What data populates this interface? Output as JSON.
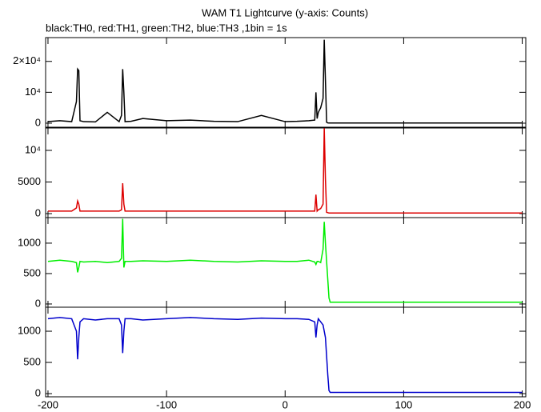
{
  "chart_data": [
    {
      "type": "line",
      "title": "WAM T1 Lightcurve (y-axis: Counts)",
      "subtitle": "black:TH0, red:TH1, green:TH2, blue:TH3 ,1bin = 1s",
      "x": [
        -200,
        -190,
        -180,
        -176,
        -175,
        -174,
        -173,
        -170,
        -160,
        -150,
        -140,
        -138,
        -137,
        -136,
        -135,
        -130,
        -120,
        -100,
        -80,
        -60,
        -40,
        -20,
        0,
        10,
        20,
        25,
        26,
        27,
        28,
        30,
        32,
        33,
        34,
        35,
        36,
        37,
        38,
        40,
        60,
        100,
        150,
        200
      ],
      "series": [
        {
          "color": "#000000",
          "values": [
            500,
            800,
            500,
            7000,
            17500,
            17000,
            800,
            500,
            400,
            3500,
            500,
            2500,
            17500,
            10000,
            500,
            600,
            1500,
            800,
            1000,
            600,
            500,
            2500,
            500,
            600,
            800,
            1000,
            10000,
            1500,
            3500,
            5000,
            8000,
            27000,
            14000,
            300,
            100,
            50,
            50,
            50,
            50,
            50,
            50,
            50
          ]
        }
      ],
      "xlim": [
        -202,
        203
      ],
      "xticks": [
        -200,
        -100,
        0,
        100,
        200
      ],
      "ylim": [
        -1300,
        27700
      ],
      "yticks": [
        0,
        {
          "value": 10000,
          "label": "10⁴"
        },
        {
          "value": 20000,
          "label": "2×10⁴"
        }
      ]
    },
    {
      "type": "line",
      "x": [
        -200,
        -190,
        -180,
        -176,
        -175,
        -174,
        -173,
        -170,
        -160,
        -150,
        -140,
        -138,
        -137,
        -136,
        -135,
        -130,
        -120,
        -100,
        -80,
        -60,
        -40,
        -20,
        0,
        10,
        20,
        25,
        26,
        27,
        28,
        30,
        32,
        33,
        34,
        35,
        36,
        37,
        38,
        40,
        60,
        100,
        150,
        200
      ],
      "series": [
        {
          "color": "#dd0000",
          "values": [
            400,
            400,
            400,
            900,
            2000,
            1500,
            400,
            400,
            400,
            400,
            400,
            600,
            4800,
            1500,
            400,
            400,
            400,
            400,
            400,
            400,
            400,
            400,
            400,
            400,
            400,
            400,
            3000,
            400,
            600,
            800,
            1500,
            13500,
            5500,
            200,
            150,
            100,
            100,
            100,
            100,
            100,
            100,
            100
          ]
        }
      ],
      "xlim": [
        -202,
        203
      ],
      "xticks": [
        -200,
        -100,
        0,
        100,
        200
      ],
      "ylim": [
        -630,
        13540
      ],
      "yticks": [
        0,
        5000,
        {
          "value": 10000,
          "label": "10⁴"
        }
      ]
    },
    {
      "type": "line",
      "x": [
        -200,
        -190,
        -180,
        -176,
        -175,
        -174,
        -173,
        -170,
        -160,
        -150,
        -140,
        -138,
        -137,
        -136,
        -135,
        -130,
        -120,
        -100,
        -80,
        -60,
        -40,
        -20,
        0,
        10,
        20,
        25,
        26,
        27,
        28,
        30,
        32,
        33,
        34,
        35,
        36,
        37,
        38,
        40,
        60,
        100,
        150,
        200
      ],
      "series": [
        {
          "color": "#00ee00",
          "values": [
            700,
            720,
            700,
            680,
            520,
            600,
            700,
            690,
            700,
            680,
            700,
            750,
            1400,
            600,
            700,
            700,
            710,
            700,
            720,
            700,
            690,
            710,
            700,
            700,
            720,
            690,
            650,
            700,
            700,
            680,
            900,
            1350,
            1000,
            700,
            400,
            100,
            30,
            30,
            30,
            30,
            30,
            30
          ]
        }
      ],
      "xlim": [
        -202,
        203
      ],
      "xticks": [
        -200,
        -100,
        0,
        100,
        200
      ],
      "ylim": [
        -53,
        1420
      ],
      "yticks": [
        0,
        500,
        1000
      ]
    },
    {
      "type": "line",
      "x": [
        -200,
        -190,
        -180,
        -176,
        -175,
        -174,
        -173,
        -170,
        -160,
        -150,
        -140,
        -138,
        -137,
        -136,
        -135,
        -130,
        -120,
        -100,
        -80,
        -60,
        -40,
        -20,
        0,
        10,
        20,
        25,
        26,
        27,
        28,
        30,
        32,
        33,
        34,
        35,
        36,
        37,
        38,
        40,
        60,
        100,
        150,
        200
      ],
      "series": [
        {
          "color": "#0000cc",
          "values": [
            1200,
            1220,
            1200,
            1000,
            550,
            900,
            1150,
            1200,
            1180,
            1200,
            1200,
            1100,
            650,
            1000,
            1200,
            1200,
            1180,
            1200,
            1220,
            1200,
            1190,
            1210,
            1200,
            1200,
            1190,
            1150,
            900,
            1100,
            1200,
            1150,
            1100,
            1000,
            900,
            600,
            300,
            50,
            20,
            20,
            20,
            20,
            20,
            20
          ]
        }
      ],
      "xlim": [
        -202,
        203
      ],
      "xticks": [
        -200,
        -100,
        0,
        100,
        200
      ],
      "ylim": [
        -51,
        1385
      ],
      "yticks": [
        0,
        500,
        1000
      ]
    }
  ]
}
